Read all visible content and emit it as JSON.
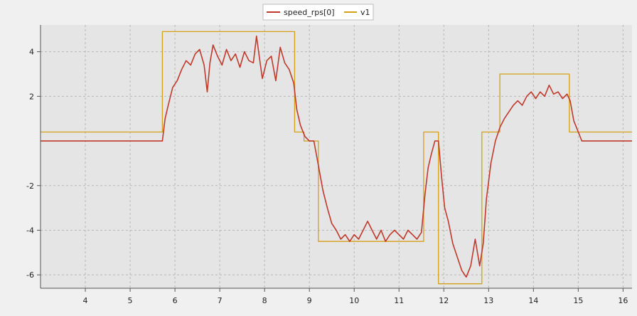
{
  "chart_data": {
    "type": "line",
    "xlim": [
      3.0,
      16.2
    ],
    "ylim": [
      -6.6,
      5.2
    ],
    "x_ticks": [
      4,
      5,
      6,
      7,
      8,
      9,
      10,
      11,
      12,
      13,
      14,
      15,
      16
    ],
    "x_tick_labels": [
      "4",
      "5",
      "6",
      "7",
      "8",
      "9",
      "10",
      "11",
      "12",
      "13",
      "14",
      "15",
      "16"
    ],
    "y_ticks": [
      -6,
      -4,
      -2,
      2,
      4
    ],
    "y_tick_labels": [
      "-6",
      "-4",
      "-2",
      "2",
      "4"
    ],
    "grid": true,
    "legend_placement": "top-center",
    "series": [
      {
        "name": "speed_rps[0]",
        "color": "#c0392b",
        "x": [
          3.0,
          5.72,
          5.78,
          5.85,
          5.95,
          6.05,
          6.15,
          6.25,
          6.35,
          6.45,
          6.55,
          6.65,
          6.72,
          6.78,
          6.85,
          6.95,
          7.05,
          7.15,
          7.25,
          7.35,
          7.45,
          7.55,
          7.65,
          7.75,
          7.82,
          7.88,
          7.95,
          8.05,
          8.15,
          8.25,
          8.35,
          8.45,
          8.55,
          8.65,
          8.72,
          8.8,
          8.9,
          9.0,
          9.1,
          9.22,
          9.3,
          9.4,
          9.5,
          9.6,
          9.7,
          9.8,
          9.9,
          10.0,
          10.1,
          10.2,
          10.3,
          10.4,
          10.5,
          10.6,
          10.7,
          10.8,
          10.9,
          11.0,
          11.1,
          11.2,
          11.3,
          11.4,
          11.5,
          11.58,
          11.65,
          11.72,
          11.8,
          11.88,
          11.95,
          12.02,
          12.1,
          12.2,
          12.3,
          12.4,
          12.5,
          12.6,
          12.7,
          12.8,
          12.88,
          12.95,
          13.05,
          13.15,
          13.25,
          13.35,
          13.45,
          13.55,
          13.65,
          13.75,
          13.85,
          13.95,
          14.05,
          14.15,
          14.25,
          14.35,
          14.45,
          14.55,
          14.65,
          14.75,
          14.82,
          14.9,
          15.0,
          15.08,
          16.2
        ],
        "y": [
          0.0,
          0.0,
          1.0,
          1.6,
          2.4,
          2.7,
          3.2,
          3.6,
          3.4,
          3.9,
          4.1,
          3.4,
          2.2,
          3.5,
          4.3,
          3.8,
          3.4,
          4.1,
          3.6,
          3.9,
          3.3,
          4.0,
          3.6,
          3.5,
          4.7,
          3.8,
          2.8,
          3.6,
          3.8,
          2.7,
          4.2,
          3.5,
          3.2,
          2.6,
          1.4,
          0.7,
          0.2,
          0.0,
          0.0,
          -1.3,
          -2.2,
          -3.0,
          -3.7,
          -4.0,
          -4.4,
          -4.2,
          -4.5,
          -4.2,
          -4.4,
          -4.0,
          -3.6,
          -4.0,
          -4.4,
          -4.0,
          -4.5,
          -4.2,
          -4.0,
          -4.2,
          -4.4,
          -4.0,
          -4.2,
          -4.4,
          -4.1,
          -2.4,
          -1.2,
          -0.6,
          0.0,
          0.0,
          -1.6,
          -3.0,
          -3.6,
          -4.6,
          -5.2,
          -5.8,
          -6.1,
          -5.6,
          -4.4,
          -5.6,
          -4.6,
          -2.6,
          -1.0,
          0.0,
          0.6,
          1.0,
          1.3,
          1.6,
          1.8,
          1.6,
          2.0,
          2.2,
          1.9,
          2.2,
          2.0,
          2.5,
          2.1,
          2.2,
          1.9,
          2.1,
          1.8,
          0.9,
          0.4,
          0.0,
          0.0
        ]
      },
      {
        "name": "v1",
        "color": "#d4a017",
        "x": [
          3.0,
          5.72,
          5.72,
          8.67,
          8.67,
          8.88,
          8.88,
          9.2,
          9.2,
          11.55,
          11.55,
          11.88,
          11.88,
          12.85,
          12.85,
          13.25,
          13.25,
          14.8,
          14.8,
          15.05,
          15.05,
          16.2
        ],
        "y": [
          0.4,
          0.4,
          4.9,
          4.9,
          0.4,
          0.4,
          0.0,
          0.0,
          -4.5,
          -4.5,
          0.4,
          0.4,
          -6.4,
          -6.4,
          0.4,
          0.4,
          3.0,
          3.0,
          0.4,
          0.4,
          0.4,
          0.4
        ]
      }
    ]
  }
}
